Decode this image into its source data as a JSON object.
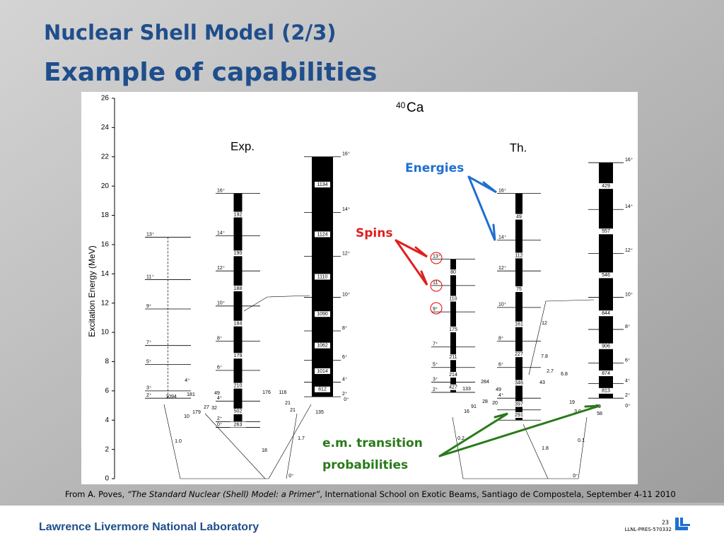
{
  "header": {
    "title": "Nuclear Shell Model (2/3)",
    "subtitle": "Example of capabilities"
  },
  "figure": {
    "nucleus_mass": "40",
    "nucleus_symbol": "Ca",
    "y_axis_label": "Excitation Energy (MeV)",
    "ylim": [
      0,
      26
    ],
    "yticks": [
      0,
      2,
      4,
      6,
      8,
      10,
      12,
      14,
      16,
      18,
      20,
      22,
      24,
      26
    ],
    "panels": [
      {
        "label": "Exp.",
        "bands": [
          {
            "levels": [
              {
                "spin": "2⁺",
                "energy": 5.5
              },
              {
                "spin": "3⁺",
                "energy": 6.0
              },
              {
                "spin": "5⁺",
                "energy": 7.8
              },
              {
                "spin": "7⁺",
                "energy": 9.1
              },
              {
                "spin": "9⁺",
                "energy": 11.6
              },
              {
                "spin": "11⁺",
                "energy": 13.6
              },
              {
                "spin": "13⁺",
                "energy": 16.5
              }
            ],
            "transitions": []
          },
          {
            "levels": [
              {
                "spin": "0⁺",
                "energy": 3.5
              },
              {
                "spin": "2⁺",
                "energy": 3.9
              },
              {
                "spin": "4⁺",
                "energy": 5.3
              },
              {
                "spin": "6⁺",
                "energy": 7.4
              },
              {
                "spin": "8⁺",
                "energy": 9.4
              },
              {
                "spin": "10⁺",
                "energy": 11.8
              },
              {
                "spin": "12⁺",
                "energy": 14.2
              },
              {
                "spin": "14⁺",
                "energy": 16.6
              },
              {
                "spin": "16⁺",
                "energy": 19.5
              }
            ],
            "transitions": [
              "263",
              "502",
              "210",
              "179",
              "184",
              "188",
              "190",
              "192"
            ]
          },
          {
            "levels": [
              {
                "spin": "2⁺",
                "energy": 5.6
              },
              {
                "spin": "4⁺",
                "energy": 6.6
              },
              {
                "spin": "6⁺",
                "energy": 8.1
              },
              {
                "spin": "8⁺",
                "energy": 10.1
              },
              {
                "spin": "10⁺",
                "energy": 12.4
              },
              {
                "spin": "12⁺",
                "energy": 15.2
              },
              {
                "spin": "14⁺",
                "energy": 18.2
              },
              {
                "spin": "16⁺",
                "energy": 22.0
              }
            ],
            "transitions": [
              "812",
              "1014",
              "1062",
              "1090",
              "1110",
              "1124",
              "1134"
            ]
          }
        ],
        "labels": [
          "1094",
          "4⁺",
          "181",
          "179",
          "10",
          "27",
          "32",
          "49",
          "176",
          "116",
          "21",
          "21",
          "135",
          "1.0",
          "18",
          "1.7",
          "0⁺",
          "0⁺"
        ]
      },
      {
        "label": "Th.",
        "bands": [
          {
            "levels": [
              {
                "spin": "2⁺",
                "energy": 5.9
              },
              {
                "spin": "3⁺",
                "energy": 6.6
              },
              {
                "spin": "5⁺",
                "energy": 7.6
              },
              {
                "spin": "7⁺",
                "energy": 9.0
              },
              {
                "spin": "9⁺",
                "energy": 11.4
              },
              {
                "spin": "11⁺",
                "energy": 13.2
              },
              {
                "spin": "13⁺",
                "energy": 15.0
              }
            ],
            "transitions": [
              "427",
              "214",
              "211",
              "175",
              "110",
              "80"
            ]
          },
          {
            "levels": [
              {
                "energy": 4.0
              },
              {
                "energy": 4.7
              },
              {
                "spin": "4⁺",
                "energy": 5.5
              },
              {
                "spin": "6⁺",
                "energy": 7.6
              },
              {
                "spin": "8⁺",
                "energy": 9.4
              },
              {
                "spin": "10⁺",
                "energy": 11.7
              },
              {
                "spin": "12⁺",
                "energy": 14.2
              },
              {
                "spin": "14⁺",
                "energy": 16.3
              },
              {
                "spin": "16⁺",
                "energy": 19.5
              }
            ],
            "transitions": [
              "291",
              "397",
              "346",
              "227",
              "161",
              "75",
              "112",
              "49"
            ]
          },
          {
            "levels": [
              {
                "spin": "2⁺",
                "energy": 5.5
              },
              {
                "spin": "4⁺",
                "energy": 6.5
              },
              {
                "spin": "6⁺",
                "energy": 7.9
              },
              {
                "spin": "8⁺",
                "energy": 10.2
              },
              {
                "spin": "10⁺",
                "energy": 12.4
              },
              {
                "spin": "12⁺",
                "energy": 15.4
              },
              {
                "spin": "14⁺",
                "energy": 18.4
              },
              {
                "spin": "16⁺",
                "energy": 21.6
              }
            ],
            "transitions": [
              "813",
              "874",
              "906",
              "844",
              "546",
              "557",
              "429"
            ]
          }
        ],
        "labels": [
          "133",
          "284",
          "49",
          "28",
          "20",
          "16",
          "91",
          "43",
          "2.7",
          "6.8",
          "19",
          "3.0",
          "79",
          "58",
          "12",
          "7.8",
          "0.2",
          "1.8",
          "0.1",
          "0⁺",
          "0⁺"
        ]
      }
    ]
  },
  "annotations": {
    "energies": "Energies",
    "spins": "Spins",
    "em_line1": "e.m. transition",
    "em_line2": "probabilities"
  },
  "citation": {
    "prefix": "From A. Poves, ",
    "title": "“The Standard Nuclear (Shell) Model: a Primer”",
    "suffix": ", International School on Exotic Beams, Santiago de Compostela, September 4-11 2010"
  },
  "footer": {
    "lab": "Lawrence Livermore National Laboratory",
    "page": "23",
    "code": "LLNL-PRES-570332"
  }
}
